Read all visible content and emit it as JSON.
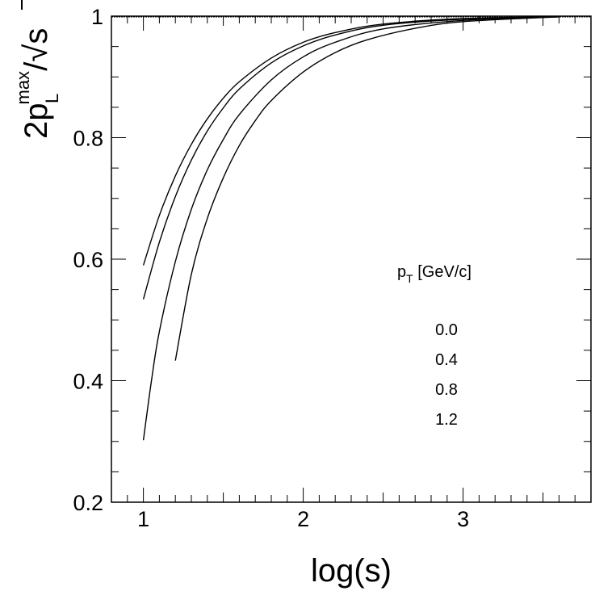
{
  "chart_data": {
    "type": "line",
    "title": "",
    "xlabel": "log(s)",
    "ylabel": {
      "lead": "2p",
      "superscript": "max",
      "subscript": "L",
      "slash": "/",
      "radical": "√",
      "radicand": "s"
    },
    "xlim": [
      0.8,
      3.8
    ],
    "ylim": [
      0.2,
      1.0
    ],
    "x_ticks": [
      1,
      2,
      3
    ],
    "x_tick_labels": [
      "1",
      "2",
      "3"
    ],
    "y_ticks": [
      0.2,
      0.4,
      0.6,
      0.8,
      1.0
    ],
    "y_tick_labels": [
      "0.2",
      "0.4",
      "0.6",
      "0.8",
      "1"
    ],
    "grid": false,
    "legend": {
      "title_main": "p",
      "title_sub": "T",
      "title_rest": " [GeV/c]",
      "position": "right",
      "entries": [
        "0.0",
        "0.4",
        "0.8",
        "1.2"
      ]
    },
    "series": [
      {
        "label": "0.0",
        "x": [
          1.0,
          1.1,
          1.2,
          1.3,
          1.4,
          1.5,
          1.6,
          1.8,
          2.0,
          2.2,
          2.5,
          3.0,
          3.6
        ],
        "y": [
          0.59,
          0.672,
          0.737,
          0.789,
          0.831,
          0.865,
          0.892,
          0.931,
          0.957,
          0.973,
          0.987,
          0.996,
          0.999
        ]
      },
      {
        "label": "0.4",
        "x": [
          1.0,
          1.1,
          1.2,
          1.3,
          1.4,
          1.5,
          1.6,
          1.8,
          2.0,
          2.2,
          2.5,
          3.0,
          3.6
        ],
        "y": [
          0.534,
          0.628,
          0.703,
          0.763,
          0.811,
          0.849,
          0.88,
          0.923,
          0.951,
          0.969,
          0.985,
          0.995,
          0.999
        ]
      },
      {
        "label": "0.8",
        "x": [
          1.0,
          1.05,
          1.1,
          1.2,
          1.3,
          1.4,
          1.5,
          1.6,
          1.8,
          2.0,
          2.2,
          2.5,
          3.0,
          3.6
        ],
        "y": [
          0.302,
          0.399,
          0.481,
          0.596,
          0.682,
          0.747,
          0.797,
          0.838,
          0.895,
          0.933,
          0.957,
          0.979,
          0.993,
          0.999
        ]
      },
      {
        "label": "1.2",
        "x": [
          1.2,
          1.3,
          1.4,
          1.5,
          1.6,
          1.7,
          1.8,
          2.0,
          2.2,
          2.4,
          2.7,
          3.0,
          3.6
        ],
        "y": [
          0.433,
          0.575,
          0.667,
          0.734,
          0.787,
          0.828,
          0.861,
          0.908,
          0.94,
          0.961,
          0.98,
          0.991,
          0.999
        ]
      }
    ]
  }
}
